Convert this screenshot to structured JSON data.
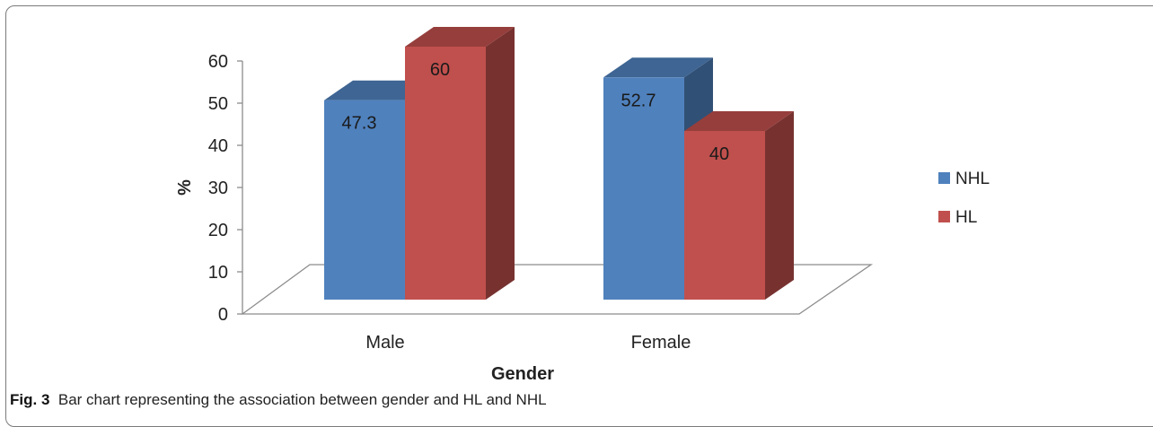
{
  "caption": {
    "label": "Fig. 3",
    "text": "Bar chart representing the association between gender and HL and NHL"
  },
  "chart_data": {
    "type": "bar",
    "categories": [
      "Male",
      "Female"
    ],
    "series": [
      {
        "name": "NHL",
        "values": [
          47.3,
          52.7
        ],
        "color": "#4f81bd"
      },
      {
        "name": "HL",
        "values": [
          60,
          40
        ],
        "color": "#c0504d"
      }
    ],
    "xlabel": "Gender",
    "ylabel": "%",
    "ylim": [
      0,
      60
    ],
    "yticks": [
      0,
      10,
      20,
      30,
      40,
      50,
      60
    ],
    "legend": "right",
    "grid": false,
    "three_d": true
  }
}
